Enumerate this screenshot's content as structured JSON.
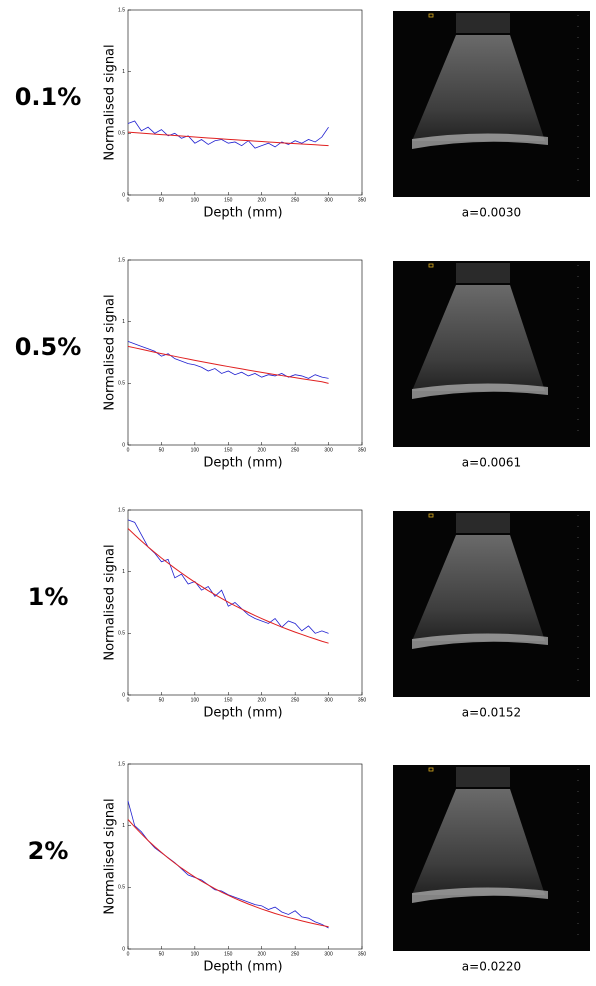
{
  "chart_data": [
    {
      "type": "line",
      "title": "0.1%",
      "annotation": "a=0.0030",
      "xlabel": "Depth (mm)",
      "ylabel": "Normalised signal",
      "xlim": [
        0,
        350
      ],
      "xticks": [
        0,
        50,
        100,
        150,
        200,
        250,
        300,
        350
      ],
      "ylim": [
        0,
        1.5
      ],
      "yticks": [
        0,
        0.5,
        1,
        1.5
      ],
      "x": [
        0,
        10,
        20,
        30,
        40,
        50,
        60,
        70,
        80,
        90,
        100,
        110,
        120,
        130,
        140,
        150,
        160,
        170,
        180,
        190,
        200,
        210,
        220,
        230,
        240,
        250,
        260,
        270,
        280,
        290,
        300
      ],
      "series": [
        {
          "color": "#2020d0",
          "values": [
            0.58,
            0.6,
            0.52,
            0.55,
            0.5,
            0.53,
            0.48,
            0.5,
            0.46,
            0.48,
            0.42,
            0.45,
            0.41,
            0.44,
            0.45,
            0.42,
            0.43,
            0.4,
            0.44,
            0.38,
            0.4,
            0.42,
            0.39,
            0.43,
            0.41,
            0.44,
            0.42,
            0.45,
            0.43,
            0.47,
            0.55
          ]
        },
        {
          "color": "#e02020",
          "values": [
            0.51,
            0.506,
            0.502,
            0.498,
            0.494,
            0.49,
            0.486,
            0.482,
            0.478,
            0.474,
            0.47,
            0.466,
            0.462,
            0.459,
            0.455,
            0.451,
            0.448,
            0.444,
            0.441,
            0.437,
            0.434,
            0.43,
            0.427,
            0.423,
            0.42,
            0.417,
            0.413,
            0.41,
            0.407,
            0.403,
            0.4
          ]
        }
      ]
    },
    {
      "type": "line",
      "title": "0.5%",
      "annotation": "a=0.0061",
      "xlabel": "Depth (mm)",
      "ylabel": "Normalised signal",
      "xlim": [
        0,
        350
      ],
      "xticks": [
        0,
        50,
        100,
        150,
        200,
        250,
        300,
        350
      ],
      "ylim": [
        0,
        1.5
      ],
      "yticks": [
        0,
        0.5,
        1,
        1.5
      ],
      "x": [
        0,
        10,
        20,
        30,
        40,
        50,
        60,
        70,
        80,
        90,
        100,
        110,
        120,
        130,
        140,
        150,
        160,
        170,
        180,
        190,
        200,
        210,
        220,
        230,
        240,
        250,
        260,
        270,
        280,
        290,
        300
      ],
      "series": [
        {
          "color": "#2020d0",
          "values": [
            0.84,
            0.82,
            0.8,
            0.78,
            0.76,
            0.72,
            0.74,
            0.7,
            0.68,
            0.66,
            0.65,
            0.63,
            0.6,
            0.62,
            0.58,
            0.6,
            0.57,
            0.59,
            0.56,
            0.58,
            0.55,
            0.57,
            0.56,
            0.58,
            0.55,
            0.57,
            0.56,
            0.54,
            0.57,
            0.55,
            0.54
          ]
        },
        {
          "color": "#e02020",
          "values": [
            0.8,
            0.788,
            0.776,
            0.764,
            0.752,
            0.741,
            0.73,
            0.719,
            0.708,
            0.697,
            0.686,
            0.676,
            0.666,
            0.656,
            0.646,
            0.636,
            0.626,
            0.617,
            0.607,
            0.598,
            0.589,
            0.58,
            0.571,
            0.563,
            0.554,
            0.546,
            0.537,
            0.529,
            0.521,
            0.513,
            0.5
          ]
        }
      ]
    },
    {
      "type": "line",
      "title": "1%",
      "annotation": "a=0.0152",
      "xlabel": "Depth (mm)",
      "ylabel": "Normalised signal",
      "xlim": [
        0,
        350
      ],
      "xticks": [
        0,
        50,
        100,
        150,
        200,
        250,
        300,
        350
      ],
      "ylim": [
        0,
        1.5
      ],
      "yticks": [
        0,
        0.5,
        1,
        1.5
      ],
      "x": [
        0,
        10,
        20,
        30,
        40,
        50,
        60,
        70,
        80,
        90,
        100,
        110,
        120,
        130,
        140,
        150,
        160,
        170,
        180,
        190,
        200,
        210,
        220,
        230,
        240,
        250,
        260,
        270,
        280,
        290,
        300
      ],
      "series": [
        {
          "color": "#2020d0",
          "values": [
            1.42,
            1.4,
            1.3,
            1.2,
            1.15,
            1.08,
            1.1,
            0.95,
            0.98,
            0.9,
            0.92,
            0.85,
            0.88,
            0.8,
            0.85,
            0.72,
            0.75,
            0.7,
            0.65,
            0.62,
            0.6,
            0.58,
            0.62,
            0.55,
            0.6,
            0.58,
            0.52,
            0.56,
            0.5,
            0.52,
            0.5
          ]
        },
        {
          "color": "#e02020",
          "values": [
            1.35,
            1.298,
            1.249,
            1.201,
            1.155,
            1.111,
            1.069,
            1.028,
            0.989,
            0.951,
            0.915,
            0.88,
            0.846,
            0.814,
            0.783,
            0.753,
            0.724,
            0.697,
            0.67,
            0.644,
            0.62,
            0.596,
            0.573,
            0.551,
            0.53,
            0.51,
            0.491,
            0.472,
            0.454,
            0.436,
            0.42
          ]
        }
      ]
    },
    {
      "type": "line",
      "title": "2%",
      "annotation": "a=0.0220",
      "xlabel": "Depth (mm)",
      "ylabel": "Normalised signal",
      "xlim": [
        0,
        350
      ],
      "xticks": [
        0,
        50,
        100,
        150,
        200,
        250,
        300,
        350
      ],
      "ylim": [
        0,
        1.5
      ],
      "yticks": [
        0,
        0.5,
        1,
        1.5
      ],
      "x": [
        0,
        10,
        20,
        30,
        40,
        50,
        60,
        70,
        80,
        90,
        100,
        110,
        120,
        130,
        140,
        150,
        160,
        170,
        180,
        190,
        200,
        210,
        220,
        230,
        240,
        250,
        260,
        270,
        280,
        290,
        300
      ],
      "series": [
        {
          "color": "#2020d0",
          "values": [
            1.2,
            1.0,
            0.95,
            0.88,
            0.82,
            0.78,
            0.74,
            0.7,
            0.65,
            0.6,
            0.58,
            0.56,
            0.52,
            0.48,
            0.47,
            0.44,
            0.42,
            0.4,
            0.38,
            0.36,
            0.35,
            0.32,
            0.34,
            0.3,
            0.28,
            0.31,
            0.26,
            0.25,
            0.22,
            0.2,
            0.17
          ]
        },
        {
          "color": "#e02020",
          "values": [
            1.05,
            0.99,
            0.934,
            0.88,
            0.83,
            0.783,
            0.738,
            0.696,
            0.656,
            0.619,
            0.583,
            0.55,
            0.519,
            0.489,
            0.461,
            0.435,
            0.41,
            0.387,
            0.365,
            0.344,
            0.324,
            0.306,
            0.288,
            0.272,
            0.256,
            0.242,
            0.228,
            0.215,
            0.203,
            0.191,
            0.18
          ]
        }
      ]
    }
  ]
}
